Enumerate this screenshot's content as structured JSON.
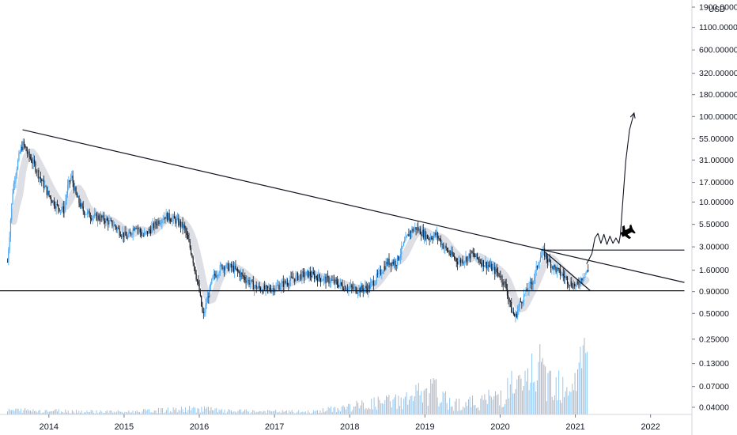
{
  "chart_data": {
    "type": "candlestick",
    "currency": "USD",
    "y_scale": "log",
    "ylim": [
      0.033,
      2300
    ],
    "xlim": [
      2013.35,
      2022.55
    ],
    "y_ticks": [
      "1900.00000",
      "1100.00000",
      "600.00000",
      "320.00000",
      "180.00000",
      "100.00000",
      "55.00000",
      "31.00000",
      "17.00000",
      "10.00000",
      "5.50000",
      "3.00000",
      "1.60000",
      "0.90000",
      "0.50000",
      "0.25000",
      "0.13000",
      "0.07000",
      "0.04000"
    ],
    "x_ticks": [
      "2014",
      "2015",
      "2016",
      "2017",
      "2018",
      "2019",
      "2020",
      "2021",
      "2022"
    ],
    "price_path": [
      [
        2013.45,
        2.0
      ],
      [
        2013.52,
        14
      ],
      [
        2013.57,
        25
      ],
      [
        2013.62,
        40
      ],
      [
        2013.66,
        48
      ],
      [
        2013.72,
        36
      ],
      [
        2013.8,
        28
      ],
      [
        2013.9,
        18
      ],
      [
        2014.0,
        12
      ],
      [
        2014.1,
        9
      ],
      [
        2014.2,
        8
      ],
      [
        2014.25,
        15
      ],
      [
        2014.3,
        20
      ],
      [
        2014.36,
        12
      ],
      [
        2014.45,
        8
      ],
      [
        2014.55,
        7
      ],
      [
        2014.7,
        6.5
      ],
      [
        2014.85,
        5.5
      ],
      [
        2014.95,
        4.5
      ],
      [
        2015.05,
        3.8
      ],
      [
        2015.15,
        5.5
      ],
      [
        2015.25,
        4.0
      ],
      [
        2015.35,
        4.8
      ],
      [
        2015.45,
        6
      ],
      [
        2015.55,
        7
      ],
      [
        2015.7,
        6
      ],
      [
        2015.8,
        5.0
      ],
      [
        2015.9,
        2.5
      ],
      [
        2016.0,
        0.9
      ],
      [
        2016.05,
        0.45
      ],
      [
        2016.1,
        0.7
      ],
      [
        2016.18,
        1.3
      ],
      [
        2016.3,
        1.8
      ],
      [
        2016.45,
        1.7
      ],
      [
        2016.6,
        1.3
      ],
      [
        2016.75,
        1.0
      ],
      [
        2016.9,
        0.95
      ],
      [
        2017.0,
        1.0
      ],
      [
        2017.15,
        1.15
      ],
      [
        2017.3,
        1.35
      ],
      [
        2017.45,
        1.45
      ],
      [
        2017.6,
        1.3
      ],
      [
        2017.75,
        1.2
      ],
      [
        2017.9,
        1.05
      ],
      [
        2018.1,
        0.95
      ],
      [
        2018.25,
        1.0
      ],
      [
        2018.38,
        1.4
      ],
      [
        2018.5,
        2.0
      ],
      [
        2018.62,
        2.0
      ],
      [
        2018.72,
        3.2
      ],
      [
        2018.8,
        4.5
      ],
      [
        2018.88,
        5.0
      ],
      [
        2018.95,
        4.5
      ],
      [
        2019.05,
        3.8
      ],
      [
        2019.15,
        4.2
      ],
      [
        2019.25,
        3.0
      ],
      [
        2019.35,
        2.4
      ],
      [
        2019.45,
        2.0
      ],
      [
        2019.55,
        2.2
      ],
      [
        2019.62,
        2.5
      ],
      [
        2019.75,
        2.0
      ],
      [
        2019.85,
        1.8
      ],
      [
        2019.92,
        1.6
      ],
      [
        2020.0,
        1.4
      ],
      [
        2020.08,
        1.0
      ],
      [
        2020.15,
        0.55
      ],
      [
        2020.2,
        0.45
      ],
      [
        2020.26,
        0.65
      ],
      [
        2020.35,
        0.9
      ],
      [
        2020.45,
        1.3
      ],
      [
        2020.52,
        2.2
      ],
      [
        2020.58,
        2.6
      ],
      [
        2020.65,
        2.0
      ],
      [
        2020.75,
        1.6
      ],
      [
        2020.85,
        1.35
      ],
      [
        2020.95,
        1.1
      ],
      [
        2021.02,
        1.05
      ],
      [
        2021.08,
        1.3
      ],
      [
        2021.13,
        1.5
      ],
      [
        2021.17,
        1.55
      ]
    ],
    "volume": [
      [
        2013.6,
        0.05
      ],
      [
        2015.0,
        0.03
      ],
      [
        2016.05,
        0.07
      ],
      [
        2016.3,
        0.04
      ],
      [
        2017.5,
        0.03
      ],
      [
        2018.75,
        0.18
      ],
      [
        2018.9,
        0.25
      ],
      [
        2019.0,
        0.2
      ],
      [
        2019.1,
        0.3
      ],
      [
        2019.3,
        0.15
      ],
      [
        2019.5,
        0.12
      ],
      [
        2019.7,
        0.15
      ],
      [
        2019.9,
        0.2
      ],
      [
        2020.05,
        0.25
      ],
      [
        2020.15,
        0.35
      ],
      [
        2020.3,
        0.3
      ],
      [
        2020.45,
        0.55
      ],
      [
        2020.55,
        0.5
      ],
      [
        2020.65,
        0.4
      ],
      [
        2020.75,
        0.45
      ],
      [
        2020.85,
        0.35
      ],
      [
        2020.95,
        0.4
      ],
      [
        2021.05,
        0.55
      ],
      [
        2021.1,
        0.6
      ],
      [
        2021.15,
        0.95
      ]
    ],
    "trendlines": [
      {
        "points": [
          [
            2013.65,
            70
          ],
          [
            2022.45,
            1.15
          ]
        ]
      },
      {
        "points": [
          [
            2013.35,
            0.92
          ],
          [
            2022.45,
            0.92
          ]
        ]
      },
      {
        "points": [
          [
            2020.55,
            2.75
          ],
          [
            2022.45,
            2.75
          ]
        ]
      },
      {
        "points": [
          [
            2020.6,
            2.6
          ],
          [
            2021.2,
            0.92
          ]
        ]
      }
    ],
    "projection_path": [
      [
        2021.15,
        1.9
      ],
      [
        2021.22,
        2.5
      ],
      [
        2021.26,
        3.8
      ],
      [
        2021.3,
        4.3
      ],
      [
        2021.34,
        3.3
      ],
      [
        2021.38,
        4.2
      ],
      [
        2021.42,
        3.2
      ],
      [
        2021.46,
        4.0
      ],
      [
        2021.5,
        3.3
      ],
      [
        2021.54,
        3.8
      ],
      [
        2021.58,
        3.3
      ],
      [
        2021.6,
        4.2
      ],
      [
        2021.63,
        10
      ],
      [
        2021.67,
        30
      ],
      [
        2021.72,
        70
      ],
      [
        2021.78,
        110
      ]
    ],
    "colors": {
      "up": "#42a5f5",
      "down": "#131722",
      "volume_up": "#90caf9",
      "volume_down": "#b2b5be",
      "trend": "#131722",
      "band": "#d1d4dc"
    },
    "icon": "airplane-icon"
  }
}
